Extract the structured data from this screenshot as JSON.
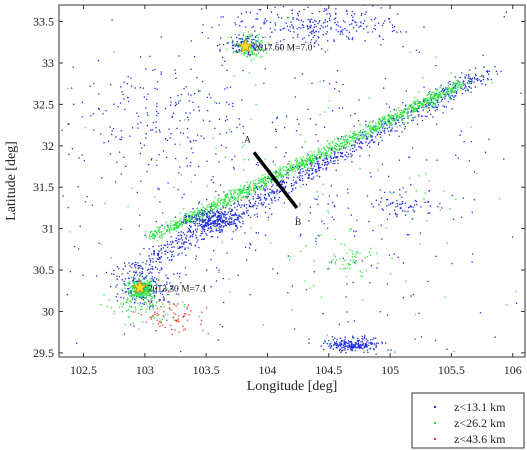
{
  "chart_data": {
    "type": "scatter",
    "xlabel": "Longitude [deg]",
    "ylabel": "Latitude [deg]",
    "xlim": [
      102.3,
      106.1
    ],
    "ylim": [
      29.45,
      33.7
    ],
    "xticks": [
      102.5,
      103,
      103.5,
      104,
      104.5,
      105,
      105.5,
      106
    ],
    "yticks": [
      29.5,
      30,
      30.5,
      31,
      31.5,
      32,
      32.5,
      33,
      33.5
    ],
    "grid": false,
    "legend_position": "bottom-right, outside plot",
    "series": [
      {
        "name": "z<13.1 km",
        "color": "#1f2de0"
      },
      {
        "name": "z<26.2 km",
        "color": "#2ee640"
      },
      {
        "name": "z<43.6 km",
        "color": "#e8352a"
      }
    ],
    "clusters": [
      {
        "series": 0,
        "x": [
          102.9,
          105.8
        ],
        "y": [
          30.5,
          32.9
        ],
        "count": 900,
        "spread": 0.06,
        "along": "line"
      },
      {
        "series": 1,
        "x": [
          103.05,
          105.6
        ],
        "y": [
          30.9,
          32.75
        ],
        "count": 1300,
        "spread": 0.035,
        "along": "line"
      },
      {
        "series": 0,
        "cx": 103.55,
        "cy": 31.1,
        "rx": 0.2,
        "ry": 0.1,
        "count": 250
      },
      {
        "series": 0,
        "cx": 104.7,
        "cy": 29.6,
        "rx": 0.2,
        "ry": 0.07,
        "count": 230
      },
      {
        "series": 0,
        "cx": 103.0,
        "cy": 30.3,
        "rx": 0.22,
        "ry": 0.2,
        "count": 200
      },
      {
        "series": 1,
        "cx": 102.97,
        "cy": 30.27,
        "rx": 0.09,
        "ry": 0.1,
        "count": 280
      },
      {
        "series": 1,
        "cx": 103.0,
        "cy": 30.05,
        "rx": 0.28,
        "ry": 0.2,
        "count": 90
      },
      {
        "series": 2,
        "cx": 103.25,
        "cy": 29.95,
        "rx": 0.25,
        "ry": 0.18,
        "count": 70
      },
      {
        "series": 1,
        "cx": 103.85,
        "cy": 33.2,
        "rx": 0.12,
        "ry": 0.12,
        "count": 150
      },
      {
        "series": 0,
        "cx": 103.8,
        "cy": 33.22,
        "rx": 0.14,
        "ry": 0.1,
        "count": 80
      },
      {
        "series": 0,
        "cx": 104.4,
        "cy": 33.45,
        "rx": 0.6,
        "ry": 0.2,
        "count": 260
      },
      {
        "series": 0,
        "cx": 103.1,
        "cy": 32.4,
        "rx": 0.6,
        "ry": 0.5,
        "count": 150
      },
      {
        "series": 0,
        "cx": 105.1,
        "cy": 31.3,
        "rx": 0.2,
        "ry": 0.15,
        "count": 60
      },
      {
        "series": 1,
        "cx": 104.7,
        "cy": 30.6,
        "rx": 0.2,
        "ry": 0.15,
        "count": 50
      },
      {
        "series": 0,
        "cx": 104.2,
        "cy": 31.6,
        "rx": 1.6,
        "ry": 1.6,
        "count": 450
      },
      {
        "series": 1,
        "cx": 104.4,
        "cy": 31.4,
        "rx": 1.5,
        "ry": 1.5,
        "count": 160
      }
    ],
    "section_line": {
      "start": {
        "x": 103.89,
        "y": 31.92,
        "label": "A"
      },
      "end": {
        "x": 104.24,
        "y": 31.25,
        "label": "B"
      }
    },
    "events": [
      {
        "x": 103.82,
        "y": 33.2,
        "label": "2017.60 M=7.0"
      },
      {
        "x": 102.96,
        "y": 30.29,
        "label": "2013.30 M=7.1"
      }
    ]
  }
}
